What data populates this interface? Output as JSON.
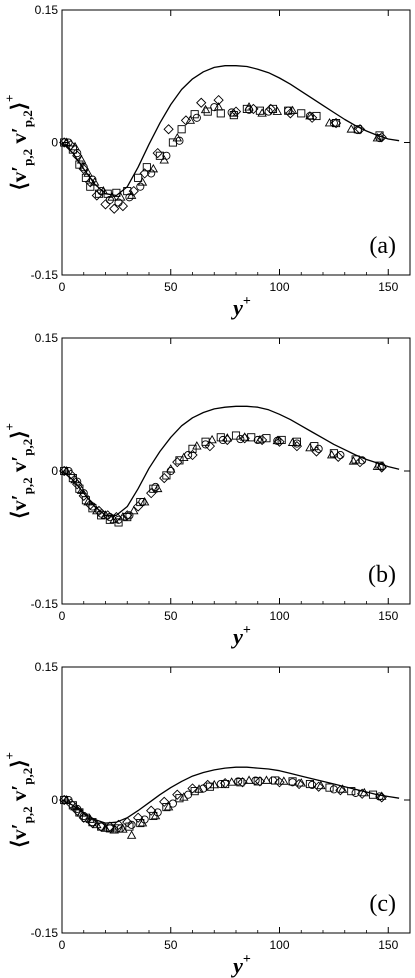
{
  "chart_data": [
    {
      "type": "scatter",
      "panel_label": "(a)",
      "xlabel": "y",
      "xlabel_sup": "+",
      "ylabel_parts": [
        "v",
        "p,2",
        "v",
        "p,2"
      ],
      "ylabel_sup": "+",
      "xlim": [
        0,
        160
      ],
      "ylim": [
        -0.15,
        0.15
      ],
      "x_ticks": [
        0,
        50,
        100,
        150
      ],
      "y_ticks": [
        {
          "v": -0.15,
          "label": "-0.15"
        },
        {
          "v": 0,
          "label": "0"
        },
        {
          "v": 0.15,
          "label": "0.15"
        }
      ],
      "line": {
        "x": [
          0,
          5,
          10,
          15,
          20,
          25,
          30,
          35,
          40,
          45,
          50,
          55,
          60,
          65,
          70,
          75,
          80,
          85,
          90,
          95,
          100,
          105,
          110,
          115,
          120,
          125,
          130,
          135,
          140,
          145,
          150,
          155
        ],
        "y": [
          0,
          -0.012,
          -0.03,
          -0.047,
          -0.058,
          -0.06,
          -0.05,
          -0.028,
          -0.002,
          0.022,
          0.043,
          0.06,
          0.072,
          0.08,
          0.085,
          0.087,
          0.087,
          0.086,
          0.083,
          0.079,
          0.073,
          0.066,
          0.058,
          0.05,
          0.042,
          0.034,
          0.026,
          0.019,
          0.013,
          0.008,
          0.004,
          0.002
        ]
      },
      "series": [
        {
          "marker": "square",
          "x": [
            1,
            5,
            8,
            11,
            13,
            17,
            21,
            25,
            30,
            35,
            39,
            45,
            51,
            55,
            61,
            67,
            73,
            79,
            85,
            91,
            97,
            104,
            110,
            117,
            126,
            136,
            146
          ],
          "y": [
            0,
            -0.008,
            -0.025,
            -0.04,
            -0.05,
            -0.058,
            -0.058,
            -0.057,
            -0.055,
            -0.04,
            -0.028,
            -0.015,
            0.0,
            0.015,
            0.032,
            0.035,
            0.033,
            0.031,
            0.038,
            0.036,
            0.038,
            0.036,
            0.033,
            0.03,
            0.022,
            0.015,
            0.008
          ]
        },
        {
          "marker": "triangle",
          "x": [
            2,
            6,
            9,
            12,
            15,
            19,
            23,
            27,
            32,
            37,
            42,
            47,
            53,
            59,
            66,
            72,
            79,
            86,
            92,
            99,
            106,
            114,
            123,
            133,
            145
          ],
          "y": [
            0,
            -0.005,
            -0.02,
            -0.035,
            -0.045,
            -0.055,
            -0.062,
            -0.062,
            -0.06,
            -0.045,
            -0.03,
            -0.02,
            0.005,
            0.025,
            0.037,
            0.04,
            0.033,
            0.04,
            0.033,
            0.035,
            0.036,
            0.03,
            0.022,
            0.015,
            0.005
          ]
        },
        {
          "marker": "circle",
          "x": [
            3,
            7,
            10,
            14,
            18,
            22,
            26,
            31,
            36,
            41,
            48,
            54,
            62,
            70,
            78,
            86,
            95,
            104,
            114,
            125,
            136,
            146
          ],
          "y": [
            0,
            -0.012,
            -0.028,
            -0.042,
            -0.055,
            -0.065,
            -0.068,
            -0.062,
            -0.05,
            -0.035,
            -0.015,
            0.002,
            0.028,
            0.04,
            0.034,
            0.037,
            0.035,
            0.036,
            0.03,
            0.022,
            0.014,
            0.005
          ]
        },
        {
          "marker": "diamond",
          "x": [
            1,
            4,
            7,
            10,
            13,
            16,
            20,
            24,
            28,
            33,
            38,
            44,
            49,
            57,
            64,
            72,
            80,
            88,
            96,
            105,
            115,
            126,
            137,
            147
          ],
          "y": [
            0,
            -0.003,
            -0.015,
            -0.03,
            -0.045,
            -0.06,
            -0.07,
            -0.075,
            -0.072,
            -0.055,
            -0.035,
            -0.012,
            0.015,
            0.025,
            0.045,
            0.048,
            0.035,
            0.038,
            0.038,
            0.033,
            0.028,
            0.022,
            0.015,
            0.006
          ]
        }
      ]
    },
    {
      "type": "scatter",
      "panel_label": "(b)",
      "xlabel": "y",
      "xlabel_sup": "+",
      "ylabel_parts": [
        "v",
        "p,2",
        "v",
        "p,2"
      ],
      "ylabel_sup": "+",
      "xlim": [
        0,
        160
      ],
      "ylim": [
        -0.15,
        0.15
      ],
      "x_ticks": [
        0,
        50,
        100,
        150
      ],
      "y_ticks": [
        {
          "v": -0.15,
          "label": "-0.15"
        },
        {
          "v": 0,
          "label": "0"
        },
        {
          "v": 0.15,
          "label": "0.15"
        }
      ],
      "line": {
        "x": [
          0,
          5,
          10,
          15,
          20,
          25,
          30,
          35,
          40,
          45,
          50,
          55,
          60,
          65,
          70,
          75,
          80,
          85,
          90,
          95,
          100,
          105,
          110,
          115,
          120,
          125,
          130,
          135,
          140,
          145,
          150,
          155
        ],
        "y": [
          0,
          -0.01,
          -0.025,
          -0.04,
          -0.05,
          -0.05,
          -0.04,
          -0.02,
          0.003,
          0.022,
          0.038,
          0.051,
          0.06,
          0.066,
          0.07,
          0.072,
          0.073,
          0.073,
          0.072,
          0.069,
          0.064,
          0.058,
          0.051,
          0.044,
          0.037,
          0.03,
          0.024,
          0.018,
          0.013,
          0.009,
          0.005,
          0.002
        ]
      },
      "series": [
        {
          "marker": "square",
          "x": [
            1,
            5,
            8,
            11,
            14,
            18,
            22,
            26,
            30,
            36,
            42,
            48,
            54,
            60,
            66,
            73,
            80,
            87,
            94,
            101,
            108,
            116,
            125,
            135,
            146
          ],
          "y": [
            0,
            -0.008,
            -0.02,
            -0.033,
            -0.042,
            -0.05,
            -0.055,
            -0.058,
            -0.052,
            -0.035,
            -0.02,
            -0.005,
            0.012,
            0.025,
            0.033,
            0.038,
            0.04,
            0.038,
            0.037,
            0.035,
            0.033,
            0.028,
            0.02,
            0.013,
            0.006
          ]
        },
        {
          "marker": "triangle",
          "x": [
            2,
            6,
            9,
            12,
            16,
            20,
            24,
            28,
            33,
            38,
            44,
            50,
            56,
            62,
            69,
            76,
            84,
            91,
            99,
            106,
            114,
            124,
            134,
            145
          ],
          "y": [
            0,
            -0.01,
            -0.022,
            -0.035,
            -0.045,
            -0.05,
            -0.055,
            -0.052,
            -0.045,
            -0.035,
            -0.02,
            0.002,
            0.015,
            0.028,
            0.035,
            0.037,
            0.038,
            0.035,
            0.034,
            0.032,
            0.026,
            0.018,
            0.011,
            0.005
          ]
        },
        {
          "marker": "circle",
          "x": [
            3,
            7,
            10,
            14,
            18,
            22,
            26,
            31,
            37,
            43,
            50,
            58,
            66,
            74,
            82,
            90,
            99,
            108,
            118,
            128,
            138,
            147
          ],
          "y": [
            0,
            -0.012,
            -0.025,
            -0.04,
            -0.048,
            -0.052,
            -0.055,
            -0.05,
            -0.035,
            -0.018,
            0.0,
            0.018,
            0.03,
            0.035,
            0.036,
            0.035,
            0.034,
            0.031,
            0.025,
            0.018,
            0.012,
            0.005
          ]
        },
        {
          "marker": "diamond",
          "x": [
            1,
            4,
            7,
            10,
            13,
            17,
            21,
            25,
            30,
            35,
            41,
            47,
            53,
            60,
            68,
            76,
            84,
            92,
            100,
            108,
            117,
            127,
            137,
            147
          ],
          "y": [
            0,
            -0.004,
            -0.015,
            -0.028,
            -0.038,
            -0.045,
            -0.05,
            -0.052,
            -0.05,
            -0.04,
            -0.025,
            -0.008,
            0.01,
            0.018,
            0.028,
            0.035,
            0.037,
            0.035,
            0.033,
            0.028,
            0.022,
            0.016,
            0.01,
            0.004
          ]
        }
      ]
    },
    {
      "type": "scatter",
      "panel_label": "(c)",
      "xlabel": "y",
      "xlabel_sup": "+",
      "ylabel_parts": [
        "v",
        "p,2",
        "v",
        "p,2"
      ],
      "ylabel_sup": "+",
      "xlim": [
        0,
        160
      ],
      "ylim": [
        -0.15,
        0.15
      ],
      "x_ticks": [
        0,
        50,
        100,
        150
      ],
      "y_ticks": [
        {
          "v": -0.15,
          "label": "-0.15"
        },
        {
          "v": 0,
          "label": "0"
        },
        {
          "v": 0.15,
          "label": "0.15"
        }
      ],
      "line": {
        "x": [
          0,
          5,
          10,
          15,
          20,
          25,
          30,
          35,
          40,
          45,
          50,
          55,
          60,
          65,
          70,
          75,
          80,
          85,
          90,
          95,
          100,
          105,
          110,
          115,
          120,
          125,
          130,
          135,
          140,
          145,
          150,
          155
        ],
        "y": [
          0,
          -0.006,
          -0.015,
          -0.022,
          -0.026,
          -0.025,
          -0.02,
          -0.012,
          -0.003,
          0.006,
          0.014,
          0.021,
          0.027,
          0.031,
          0.034,
          0.036,
          0.037,
          0.037,
          0.036,
          0.035,
          0.033,
          0.03,
          0.027,
          0.024,
          0.021,
          0.018,
          0.015,
          0.012,
          0.009,
          0.006,
          0.004,
          0.002
        ]
      },
      "series": [
        {
          "marker": "square",
          "x": [
            1,
            5,
            8,
            11,
            14,
            18,
            22,
            26,
            31,
            36,
            42,
            48,
            54,
            61,
            68,
            75,
            82,
            90,
            98,
            106,
            114,
            123,
            133,
            143
          ],
          "y": [
            0,
            -0.006,
            -0.014,
            -0.02,
            -0.025,
            -0.03,
            -0.032,
            -0.032,
            -0.03,
            -0.026,
            -0.018,
            -0.008,
            0.002,
            0.01,
            0.015,
            0.018,
            0.02,
            0.021,
            0.022,
            0.021,
            0.018,
            0.014,
            0.01,
            0.006
          ]
        },
        {
          "marker": "triangle",
          "x": [
            2,
            6,
            9,
            13,
            16,
            20,
            24,
            28,
            32,
            37,
            43,
            49,
            56,
            63,
            70,
            78,
            86,
            94,
            102,
            110,
            119,
            129,
            139,
            147
          ],
          "y": [
            0,
            -0.008,
            -0.015,
            -0.022,
            -0.028,
            -0.032,
            -0.034,
            -0.033,
            -0.04,
            -0.026,
            -0.018,
            -0.008,
            0.003,
            0.012,
            0.017,
            0.02,
            0.022,
            0.022,
            0.021,
            0.019,
            0.016,
            0.012,
            0.008,
            0.004
          ]
        },
        {
          "marker": "circle",
          "x": [
            3,
            7,
            10,
            14,
            18,
            22,
            27,
            32,
            38,
            44,
            51,
            58,
            65,
            73,
            81,
            89,
            97,
            106,
            115,
            125,
            135,
            146
          ],
          "y": [
            0,
            -0.01,
            -0.018,
            -0.025,
            -0.03,
            -0.032,
            -0.032,
            -0.028,
            -0.022,
            -0.014,
            -0.004,
            0.006,
            0.013,
            0.018,
            0.021,
            0.022,
            0.022,
            0.02,
            0.017,
            0.012,
            0.008,
            0.004
          ]
        },
        {
          "marker": "diamond",
          "x": [
            1,
            4,
            7,
            10,
            14,
            18,
            22,
            26,
            30,
            35,
            41,
            47,
            53,
            60,
            67,
            75,
            83,
            91,
            100,
            109,
            118,
            128,
            138,
            147
          ],
          "y": [
            0,
            -0.004,
            -0.012,
            -0.02,
            -0.026,
            -0.03,
            -0.03,
            -0.028,
            -0.025,
            -0.02,
            -0.012,
            -0.002,
            0.006,
            0.013,
            0.017,
            0.019,
            0.02,
            0.021,
            0.02,
            0.018,
            0.015,
            0.011,
            0.007,
            0.003
          ]
        }
      ]
    }
  ]
}
